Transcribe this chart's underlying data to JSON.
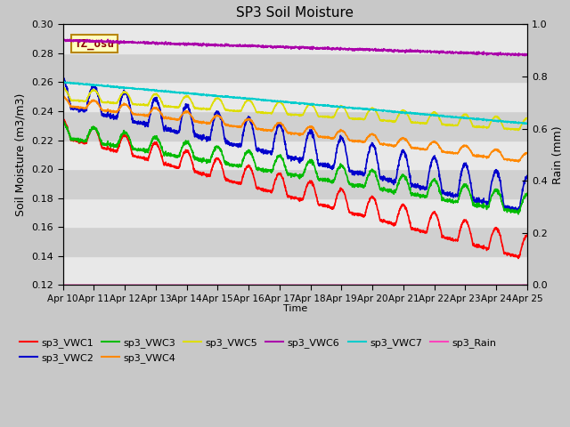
{
  "title": "SP3 Soil Moisture",
  "xlabel": "Time",
  "ylabel_left": "Soil Moisture (m3/m3)",
  "ylabel_right": "Rain (mm)",
  "ylim_left": [
    0.12,
    0.3
  ],
  "ylim_right": [
    0.0,
    1.0
  ],
  "x_tick_labels": [
    "Apr 10",
    "Apr 11",
    "Apr 12",
    "Apr 13",
    "Apr 14",
    "Apr 15",
    "Apr 16",
    "Apr 17",
    "Apr 18",
    "Apr 19",
    "Apr 20",
    "Apr 21",
    "Apr 22",
    "Apr 23",
    "Apr 24",
    "Apr 25"
  ],
  "annotation_text": "TZ_osu",
  "annotation_color": "#8B0000",
  "annotation_bg": "#FFFFC0",
  "annotation_border": "#B8860B",
  "fig_bg_color": "#C8C8C8",
  "plot_bg_color": "#E0E0E0",
  "band_light": "#E8E8E8",
  "band_dark": "#D0D0D0",
  "series_colors": {
    "sp3_VWC1": "#FF0000",
    "sp3_VWC2": "#0000CC",
    "sp3_VWC3": "#00BB00",
    "sp3_VWC4": "#FF8800",
    "sp3_VWC5": "#DDDD00",
    "sp3_VWC6": "#AA00AA",
    "sp3_VWC7": "#00CCCC",
    "sp3_Rain": "#FF44BB"
  },
  "n_points": 2160,
  "days": 15
}
